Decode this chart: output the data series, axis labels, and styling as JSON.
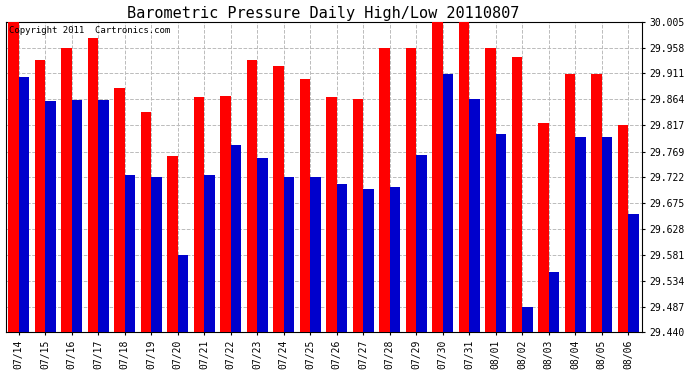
{
  "title": "Barometric Pressure Daily High/Low 20110807",
  "copyright": "Copyright 2011  Cartronics.com",
  "yticks": [
    29.44,
    29.487,
    29.534,
    29.581,
    29.628,
    29.675,
    29.722,
    29.769,
    29.817,
    29.864,
    29.911,
    29.958,
    30.005
  ],
  "ymin": 29.44,
  "ymax": 30.005,
  "dates": [
    "07/14",
    "07/15",
    "07/16",
    "07/17",
    "07/18",
    "07/19",
    "07/20",
    "07/21",
    "07/22",
    "07/23",
    "07/24",
    "07/25",
    "07/26",
    "07/27",
    "07/28",
    "07/29",
    "07/30",
    "07/31",
    "08/01",
    "08/02",
    "08/03",
    "08/04",
    "08/05",
    "08/06"
  ],
  "highs": [
    30.005,
    29.935,
    29.958,
    29.975,
    29.885,
    29.84,
    29.76,
    29.868,
    29.87,
    29.935,
    29.925,
    29.9,
    29.868,
    29.864,
    29.958,
    29.958,
    30.005,
    30.005,
    29.958,
    29.94,
    29.82,
    29.91,
    29.91,
    29.817
  ],
  "lows": [
    29.905,
    29.86,
    29.862,
    29.862,
    29.727,
    29.722,
    29.58,
    29.727,
    29.78,
    29.758,
    29.722,
    29.722,
    29.71,
    29.7,
    29.705,
    29.762,
    29.91,
    29.864,
    29.8,
    29.487,
    29.55,
    29.795,
    29.795,
    29.655
  ],
  "high_color": "#ff0000",
  "low_color": "#0000cc",
  "bg_color": "#ffffff",
  "grid_color": "#bbbbbb",
  "title_fontsize": 11,
  "bar_width": 0.4
}
